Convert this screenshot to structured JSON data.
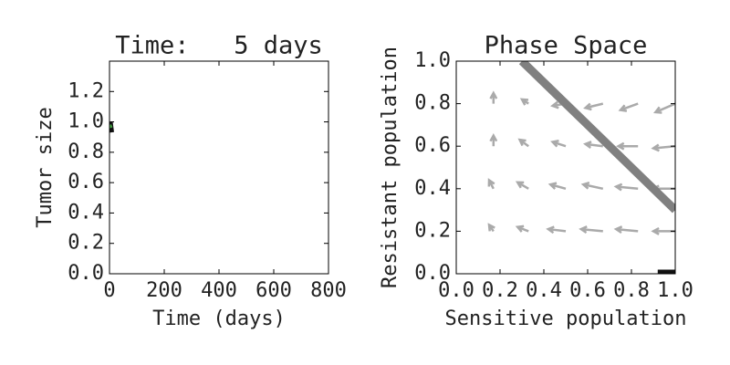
{
  "chart_data": [
    {
      "type": "line",
      "title": "Time:   5 days",
      "xlabel": "Time (days)",
      "ylabel": "Tumor size",
      "x": [
        0,
        5
      ],
      "series": [
        {
          "color": "#111111",
          "values": [
            1.0,
            0.93
          ]
        },
        {
          "color": "#44aa44",
          "values": [
            0.98,
            0.96
          ]
        }
      ],
      "xlim": [
        0,
        800
      ],
      "xticks": [
        0,
        200,
        400,
        600,
        800
      ],
      "ylim": [
        0,
        1.4
      ],
      "yticks": [
        {
          "value": 0,
          "label": "0.0"
        },
        {
          "value": 0.2,
          "label": "0.2"
        },
        {
          "value": 0.4,
          "label": "0.4"
        },
        {
          "value": 0.6,
          "label": "0.6"
        },
        {
          "value": 0.8,
          "label": "0.8"
        },
        {
          "value": 1.0,
          "label": "1.0"
        },
        {
          "value": 1.2,
          "label": "1.2"
        }
      ]
    },
    {
      "type": "quiver",
      "title": "Phase Space",
      "xlabel": "Sensitive population",
      "ylabel": "Resistant population",
      "xlim": [
        0,
        1
      ],
      "ylim": [
        0,
        1
      ],
      "xticks": [
        {
          "value": 0,
          "label": "0.0"
        },
        {
          "value": 0.2,
          "label": "0.2"
        },
        {
          "value": 0.4,
          "label": "0.4"
        },
        {
          "value": 0.6,
          "label": "0.6"
        },
        {
          "value": 0.8,
          "label": "0.8"
        },
        {
          "value": 1.0,
          "label": "1.0"
        }
      ],
      "yticks": [
        {
          "value": 0,
          "label": "0.0"
        },
        {
          "value": 0.2,
          "label": "0.2"
        },
        {
          "value": 0.4,
          "label": "0.4"
        },
        {
          "value": 0.6,
          "label": "0.6"
        },
        {
          "value": 0.8,
          "label": "0.8"
        },
        {
          "value": 1.0,
          "label": "1.0"
        }
      ],
      "color": "#aaaaaa",
      "quiver": {
        "x": [
          0.17,
          0.33,
          0.5,
          0.67,
          0.83,
          1.0,
          0.17,
          0.33,
          0.5,
          0.67,
          0.83,
          1.0,
          0.17,
          0.33,
          0.5,
          0.67,
          0.83,
          1.0,
          0.17,
          0.33,
          0.5,
          0.67,
          0.83,
          1.0
        ],
        "y": [
          0.8,
          0.8,
          0.8,
          0.8,
          0.8,
          0.8,
          0.6,
          0.6,
          0.6,
          0.6,
          0.6,
          0.6,
          0.4,
          0.4,
          0.4,
          0.4,
          0.4,
          0.4,
          0.2,
          0.2,
          0.2,
          0.2,
          0.2,
          0.2
        ],
        "u": [
          0,
          -0.03,
          -0.06,
          -0.08,
          -0.08,
          -0.09,
          0,
          -0.04,
          -0.06,
          -0.08,
          -0.09,
          -0.1,
          -0.02,
          -0.05,
          -0.07,
          -0.09,
          -0.1,
          -0.1,
          -0.02,
          -0.05,
          -0.08,
          -0.1,
          -0.1,
          -0.1
        ],
        "v": [
          0.05,
          0.02,
          -0.01,
          -0.02,
          -0.03,
          -0.04,
          0.05,
          0.03,
          0.02,
          0.01,
          0,
          -0.01,
          0.04,
          0.03,
          0.02,
          0.02,
          0.01,
          0,
          0.03,
          0.02,
          0.01,
          0.01,
          0.01,
          0
        ]
      },
      "lines": [
        {
          "color": "#808080",
          "x": [
            0.3,
            1.0
          ],
          "y": [
            1.0,
            0.3
          ]
        },
        {
          "color": "#111111",
          "x": [
            0.92,
            1.0
          ],
          "y": [
            0,
            0
          ]
        }
      ]
    }
  ]
}
